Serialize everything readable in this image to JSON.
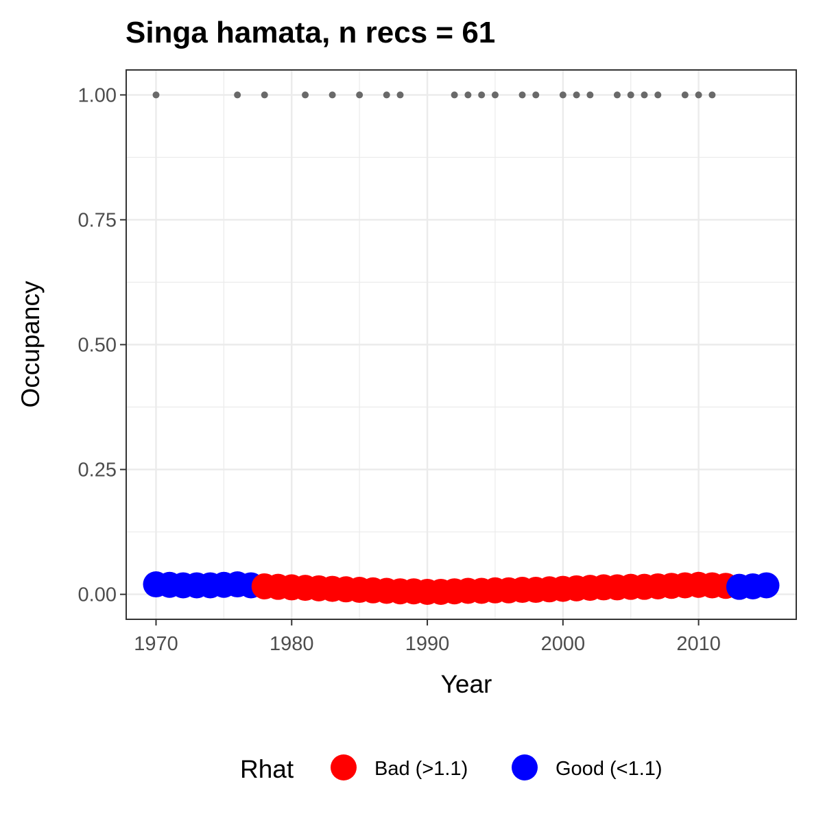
{
  "chart_data": {
    "type": "scatter",
    "title": "Singa hamata, n recs = 61",
    "xlabel": "Year",
    "ylabel": "Occupancy",
    "xlim": [
      1967.8,
      2017.2
    ],
    "ylim": [
      -0.05,
      1.05
    ],
    "x_ticks": [
      1970,
      1980,
      1990,
      2000,
      2010
    ],
    "x_tick_labels": [
      "1970",
      "1980",
      "1990",
      "2000",
      "2010"
    ],
    "y_ticks": [
      0,
      0.25,
      0.5,
      0.75,
      1.0
    ],
    "y_tick_labels": [
      "0.00",
      "0.25",
      "0.50",
      "0.75",
      "1.00"
    ],
    "grid": true,
    "legend": {
      "title": "Rhat",
      "position": "bottom",
      "entries": [
        {
          "label": "Bad (>1.1)",
          "color": "#ff0000"
        },
        {
          "label": "Good (<1.1)",
          "color": "#0000ff"
        }
      ]
    },
    "series": [
      {
        "name": "Bad (>1.1)",
        "color": "#ff0000",
        "x": [
          1978,
          1979,
          1980,
          1981,
          1982,
          1983,
          1984,
          1985,
          1986,
          1987,
          1988,
          1989,
          1990,
          1991,
          1992,
          1993,
          1994,
          1995,
          1996,
          1997,
          1998,
          1999,
          2000,
          2001,
          2002,
          2003,
          2004,
          2005,
          2006,
          2007,
          2008,
          2009,
          2010,
          2011,
          2012
        ],
        "values": [
          0.016,
          0.015,
          0.014,
          0.013,
          0.012,
          0.011,
          0.01,
          0.009,
          0.008,
          0.007,
          0.006,
          0.006,
          0.005,
          0.005,
          0.006,
          0.007,
          0.007,
          0.008,
          0.008,
          0.009,
          0.009,
          0.01,
          0.011,
          0.012,
          0.013,
          0.014,
          0.014,
          0.015,
          0.015,
          0.016,
          0.017,
          0.018,
          0.019,
          0.018,
          0.017
        ]
      },
      {
        "name": "Good (<1.1)",
        "color": "#0000ff",
        "x": [
          1970,
          1971,
          1972,
          1973,
          1974,
          1975,
          1976,
          1977,
          2013,
          2014,
          2015
        ],
        "values": [
          0.02,
          0.019,
          0.018,
          0.018,
          0.018,
          0.019,
          0.02,
          0.018,
          0.015,
          0.016,
          0.018
        ]
      }
    ],
    "records": {
      "color": "#696969",
      "y": 1.0,
      "x": [
        1970,
        1976,
        1978,
        1981,
        1983,
        1985,
        1987,
        1988,
        1992,
        1993,
        1994,
        1995,
        1997,
        1998,
        2000,
        2001,
        2002,
        2004,
        2005,
        2006,
        2007,
        2009,
        2010,
        2011
      ]
    }
  }
}
